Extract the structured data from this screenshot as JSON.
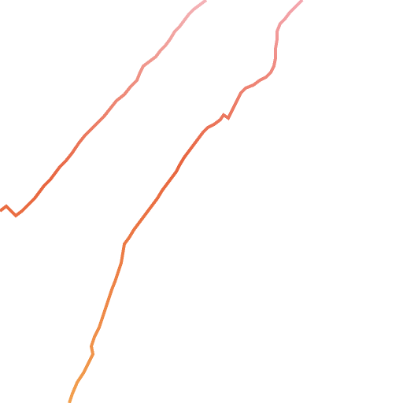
{
  "map": {
    "background": "#ffffff",
    "routes": [
      {
        "id": "route-left",
        "gradient": [
          "#f2a65a",
          "#e8653f",
          "#f4b3b8"
        ]
      },
      {
        "id": "route-right",
        "gradient": [
          "#f2a04e",
          "#e8653f",
          "#f4a7b0"
        ]
      }
    ]
  }
}
